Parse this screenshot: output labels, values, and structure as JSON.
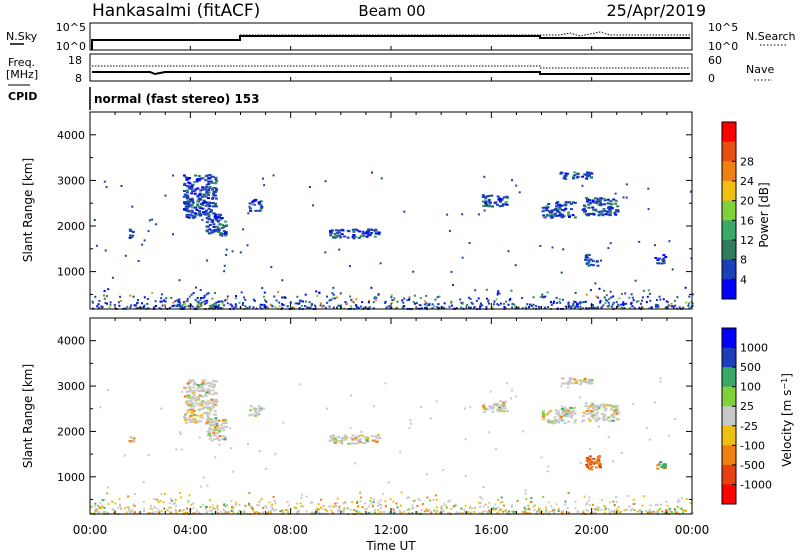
{
  "header": {
    "station": "Hankasalmi (fitACF)",
    "beam": "Beam 00",
    "date": "25/Apr/2019"
  },
  "top_panels": {
    "nsky_label": "N.Sky",
    "nsky_ticks": [
      "10^5",
      "10^0"
    ],
    "nsearch_label": "N.Search",
    "nsearch_ticks": [
      "10^5",
      "10^0"
    ],
    "freq_label": "Freq.",
    "freq_unit": "[MHz]",
    "freq_ticks": [
      "18",
      "8"
    ],
    "nave_label": "Nave",
    "nave_ticks": [
      "60",
      "0"
    ],
    "cpid_label": "CPID",
    "cpid_text": "normal (fast stereo) 153"
  },
  "colors": {
    "power_scale": [
      "#0000ff",
      "#1a3fb8",
      "#2e7d5a",
      "#3aa868",
      "#7fd23a",
      "#f0c010",
      "#f08010",
      "#e85010",
      "#ff0000"
    ],
    "velocity_scale": [
      "#ff0000",
      "#e84010",
      "#f08010",
      "#f0c010",
      "#c8c8c8",
      "#7fd23a",
      "#3aa868",
      "#1a3fb8",
      "#0000ff"
    ]
  },
  "chart_data": [
    {
      "type": "heatmap",
      "name": "Power",
      "ylabel": "Slant Range [km]",
      "yticks": [
        "1000",
        "2000",
        "3000",
        "4000"
      ],
      "ylim": [
        180,
        4500
      ],
      "xlim": [
        0,
        24
      ],
      "colorbar_label": "Power [dB]",
      "colorbar_ticks": [
        "4",
        "8",
        "12",
        "16",
        "20",
        "24",
        "28"
      ],
      "patches": [
        {
          "t0": 3.7,
          "t1": 5.0,
          "r0": 2200,
          "r1": 3150
        },
        {
          "t0": 4.6,
          "t1": 5.4,
          "r0": 1800,
          "r1": 2300
        },
        {
          "t0": 6.3,
          "t1": 6.8,
          "r0": 2350,
          "r1": 2600
        },
        {
          "t0": 9.5,
          "t1": 11.5,
          "r0": 1750,
          "r1": 1950
        },
        {
          "t0": 15.6,
          "t1": 16.6,
          "r0": 2450,
          "r1": 2700
        },
        {
          "t0": 18.0,
          "t1": 19.3,
          "r0": 2200,
          "r1": 2550
        },
        {
          "t0": 19.6,
          "t1": 21.0,
          "r0": 2250,
          "r1": 2650
        },
        {
          "t0": 19.7,
          "t1": 20.2,
          "r0": 1150,
          "r1": 1400
        },
        {
          "t0": 22.5,
          "t1": 22.9,
          "r0": 1200,
          "r1": 1400
        },
        {
          "t0": 1.5,
          "t1": 1.7,
          "r0": 1750,
          "r1": 1950
        },
        {
          "t0": 18.7,
          "t1": 20.0,
          "r0": 3050,
          "r1": 3200
        }
      ]
    },
    {
      "type": "heatmap",
      "name": "Velocity",
      "ylabel": "Slant Range [km]",
      "yticks": [
        "1000",
        "2000",
        "3000",
        "4000"
      ],
      "ylim": [
        180,
        4500
      ],
      "xlim": [
        0,
        24
      ],
      "colorbar_label": "Velocity [m s^-1]",
      "colorbar_ticks": [
        "1000",
        "500",
        "100",
        "25",
        "-25",
        "-100",
        "-500",
        "-1000"
      ],
      "patches": [
        {
          "t0": 3.7,
          "t1": 5.0,
          "r0": 2200,
          "r1": 3150
        },
        {
          "t0": 4.6,
          "t1": 5.4,
          "r0": 1800,
          "r1": 2300
        },
        {
          "t0": 6.3,
          "t1": 6.8,
          "r0": 2350,
          "r1": 2600
        },
        {
          "t0": 9.5,
          "t1": 11.5,
          "r0": 1750,
          "r1": 1950
        },
        {
          "t0": 15.6,
          "t1": 16.6,
          "r0": 2450,
          "r1": 2700
        },
        {
          "t0": 18.0,
          "t1": 19.3,
          "r0": 2200,
          "r1": 2550
        },
        {
          "t0": 19.6,
          "t1": 21.0,
          "r0": 2250,
          "r1": 2650
        },
        {
          "t0": 19.7,
          "t1": 20.3,
          "r0": 1150,
          "r1": 1500
        },
        {
          "t0": 22.5,
          "t1": 22.9,
          "r0": 1200,
          "r1": 1400
        },
        {
          "t0": 1.5,
          "t1": 1.7,
          "r0": 1750,
          "r1": 1950
        },
        {
          "t0": 18.7,
          "t1": 20.0,
          "r0": 3050,
          "r1": 3200
        }
      ]
    }
  ],
  "x_axis": {
    "ticks": [
      "00:00",
      "04:00",
      "08:00",
      "12:00",
      "16:00",
      "20:00",
      "00:00"
    ],
    "label": "Time UT"
  }
}
